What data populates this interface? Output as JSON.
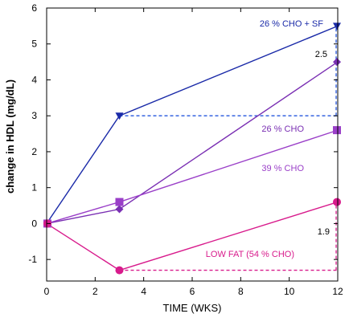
{
  "chart_data": {
    "type": "line",
    "title": "",
    "xlabel": "TIME (WKS)",
    "ylabel": "change in HDL  (mg/dL)",
    "xlim": [
      0,
      12
    ],
    "ylim": [
      -1.6,
      6
    ],
    "xticks": [
      0,
      2,
      4,
      6,
      8,
      10,
      12
    ],
    "yticks": [
      -1,
      0,
      1,
      2,
      3,
      4,
      5,
      6
    ],
    "grid": false,
    "series": [
      {
        "name": "26 % CHO + SF",
        "marker": "triangle-down",
        "color": "#1a2aa8",
        "x": [
          0,
          3,
          12
        ],
        "y": [
          0,
          3.0,
          5.5
        ]
      },
      {
        "name": "26 % CHO",
        "marker": "diamond",
        "color": "#7a2fb3",
        "x": [
          0,
          3,
          12
        ],
        "y": [
          0,
          0.4,
          4.5
        ]
      },
      {
        "name": "39 % CHO",
        "marker": "square",
        "color": "#9a3fc8",
        "x": [
          0,
          3,
          12
        ],
        "y": [
          0,
          0.6,
          2.6
        ]
      },
      {
        "name": "LOW FAT (54 % CHO)",
        "marker": "circle",
        "color": "#d81b8c",
        "x": [
          0,
          3,
          12
        ],
        "y": [
          0,
          -1.3,
          0.6
        ]
      }
    ],
    "reference_lines": [
      {
        "series": "26 % CHO + SF",
        "y": 3.0,
        "from_x": 3,
        "to_x": 12,
        "color": "#2255dd"
      },
      {
        "series": "LOW FAT (54 % CHO)",
        "y": -1.3,
        "from_x": 3,
        "to_x": 12,
        "color": "#d81b8c"
      }
    ],
    "annotations": [
      {
        "text": "2.5",
        "x": 12,
        "y_from": 3.0,
        "y_to": 5.5
      },
      {
        "text": "1.9",
        "x": 12,
        "y_from": -1.3,
        "y_to": 0.6
      }
    ]
  }
}
